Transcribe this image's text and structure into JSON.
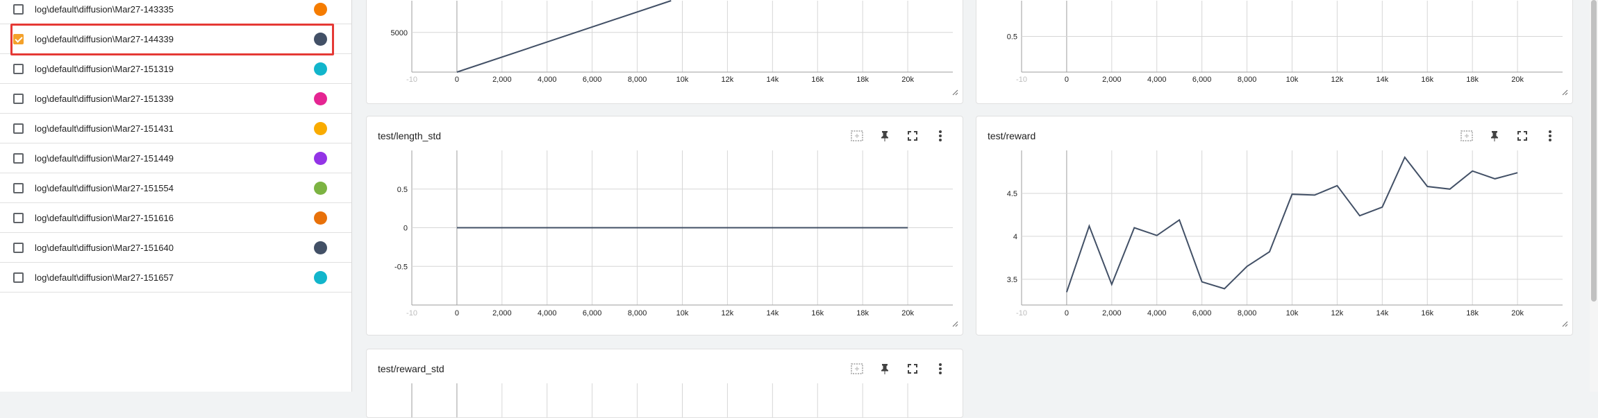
{
  "runs": [
    {
      "label": "log\\default\\diffusion\\Mar27-143335",
      "checked": false,
      "color": "#f57c00"
    },
    {
      "label": "log\\default\\diffusion\\Mar27-144339",
      "checked": true,
      "color": "#425066"
    },
    {
      "label": "log\\default\\diffusion\\Mar27-151319",
      "checked": false,
      "color": "#12b5cb"
    },
    {
      "label": "log\\default\\diffusion\\Mar27-151339",
      "checked": false,
      "color": "#e52592"
    },
    {
      "label": "log\\default\\diffusion\\Mar27-151431",
      "checked": false,
      "color": "#f9ab00"
    },
    {
      "label": "log\\default\\diffusion\\Mar27-151449",
      "checked": false,
      "color": "#9334e6"
    },
    {
      "label": "log\\default\\diffusion\\Mar27-151554",
      "checked": false,
      "color": "#7cb342"
    },
    {
      "label": "log\\default\\diffusion\\Mar27-151616",
      "checked": false,
      "color": "#e8710a"
    },
    {
      "label": "log\\default\\diffusion\\Mar27-151640",
      "checked": false,
      "color": "#425066"
    },
    {
      "label": "log\\default\\diffusion\\Mar27-151657",
      "checked": false,
      "color": "#12b5cb"
    }
  ],
  "cards": {
    "top_left": {
      "title": ""
    },
    "top_right": {
      "title": ""
    },
    "length_std": {
      "title": "test/length_std"
    },
    "reward": {
      "title": "test/reward"
    },
    "reward_std": {
      "title": "test/reward_std"
    }
  },
  "icons": {
    "fit_domain": "fit-domain-icon",
    "pin": "pin-icon",
    "fullscreen": "fullscreen-icon",
    "more": "more-vert-icon"
  },
  "chart_data": [
    {
      "id": "top_left",
      "type": "line",
      "title": "",
      "x_ticks": [
        "-10",
        "0",
        "2,000",
        "4,000",
        "6,000",
        "8,000",
        "10k",
        "12k",
        "14k",
        "16k",
        "18k",
        "20k"
      ],
      "y_ticks": [
        "5000"
      ],
      "series": [
        {
          "x": [
            0,
            9500
          ],
          "y": [
            0,
            9000
          ]
        }
      ],
      "xlim": [
        -2000,
        22000
      ],
      "ylim": [
        0,
        9000
      ]
    },
    {
      "id": "top_right",
      "type": "line",
      "title": "",
      "x_ticks": [
        "-10",
        "0",
        "2,000",
        "4,000",
        "6,000",
        "8,000",
        "10k",
        "12k",
        "14k",
        "16k",
        "18k",
        "20k"
      ],
      "y_ticks": [
        "0.5"
      ],
      "series": [],
      "xlim": [
        -2000,
        22000
      ],
      "ylim": [
        0,
        1
      ]
    },
    {
      "id": "length_std",
      "type": "line",
      "title": "test/length_std",
      "x_ticks": [
        "-10",
        "0",
        "2,000",
        "4,000",
        "6,000",
        "8,000",
        "10k",
        "12k",
        "14k",
        "16k",
        "18k",
        "20k"
      ],
      "y_ticks": [
        "0.5",
        "0",
        "-0.5"
      ],
      "series": [
        {
          "x": [
            0,
            20000
          ],
          "y": [
            0,
            0
          ]
        }
      ],
      "xlim": [
        -2000,
        22000
      ],
      "ylim": [
        -1,
        1
      ]
    },
    {
      "id": "reward",
      "type": "line",
      "title": "test/reward",
      "x_ticks": [
        "-10",
        "0",
        "2,000",
        "4,000",
        "6,000",
        "8,000",
        "10k",
        "12k",
        "14k",
        "16k",
        "18k",
        "20k"
      ],
      "y_ticks": [
        "4.5",
        "4",
        "3.5"
      ],
      "series": [
        {
          "x": [
            0,
            1000,
            2000,
            3000,
            4000,
            5000,
            6000,
            7000,
            8000,
            9000,
            10000,
            11000,
            12000,
            13000,
            14000,
            15000,
            16000,
            17000,
            18000,
            19000,
            20000
          ],
          "y": [
            3.35,
            4.12,
            3.44,
            4.1,
            4.01,
            4.19,
            3.47,
            3.39,
            3.65,
            3.82,
            4.49,
            4.48,
            4.59,
            4.24,
            4.34,
            4.92,
            4.58,
            4.55,
            4.76,
            4.67,
            4.74
          ]
        }
      ],
      "xlim": [
        -2000,
        22000
      ],
      "ylim": [
        3.2,
        5.0
      ]
    },
    {
      "id": "reward_std",
      "type": "line",
      "title": "test/reward_std",
      "x_ticks": [],
      "y_ticks": [],
      "series": [],
      "xlim": [
        -2000,
        22000
      ],
      "ylim": [
        0,
        1
      ]
    }
  ]
}
